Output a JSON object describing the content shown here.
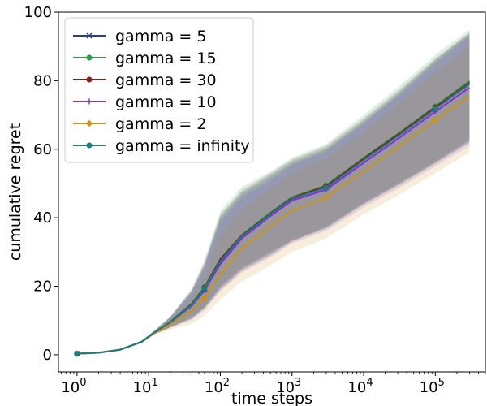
{
  "chart_data": {
    "type": "line",
    "title": "",
    "xlabel": "time steps",
    "ylabel": "cumulative regret",
    "x_scale": "log",
    "xlim": [
      0.55,
      500000
    ],
    "ylim": [
      -5,
      100
    ],
    "y_ticks": [
      0,
      20,
      40,
      60,
      80,
      100
    ],
    "x_ticks": [
      {
        "value": 1,
        "base": "10",
        "exp": "0"
      },
      {
        "value": 10,
        "base": "10",
        "exp": "1"
      },
      {
        "value": 100,
        "base": "10",
        "exp": "2"
      },
      {
        "value": 1000,
        "base": "10",
        "exp": "3"
      },
      {
        "value": 10000,
        "base": "10",
        "exp": "4"
      },
      {
        "value": 100000,
        "base": "10",
        "exp": "5"
      }
    ],
    "grid": false,
    "legend_position": "top-left",
    "shaded_bands": true,
    "series": [
      {
        "name": "gamma = 5",
        "color": "#2b3f8c",
        "marker": "x",
        "x": [
          1,
          2,
          4,
          8,
          12,
          20,
          40,
          60,
          100,
          200,
          500,
          1000,
          3000,
          10000,
          30000,
          100000,
          300000
        ],
        "y": [
          0.3,
          0.6,
          1.5,
          3.8,
          6.5,
          9.5,
          14.5,
          19.0,
          27.0,
          34.5,
          41.0,
          45.5,
          49.0,
          57.0,
          64.0,
          72.0,
          79.0
        ],
        "lower": [
          0.3,
          0.6,
          1.4,
          3.5,
          6.0,
          8.0,
          10.5,
          13.5,
          19.0,
          24.5,
          29.0,
          33.0,
          37.0,
          44.0,
          49.5,
          56.0,
          62.0
        ],
        "upper": [
          0.3,
          0.6,
          1.6,
          4.1,
          7.0,
          11.0,
          18.5,
          26.0,
          40.0,
          47.0,
          52.0,
          56.0,
          60.0,
          68.0,
          76.0,
          86.0,
          94.0
        ]
      },
      {
        "name": "gamma = 15",
        "color": "#2c9a4b",
        "marker": "o",
        "x": [
          1,
          2,
          4,
          8,
          12,
          20,
          40,
          60,
          100,
          200,
          500,
          1000,
          3000,
          10000,
          30000,
          100000,
          300000
        ],
        "y": [
          0.3,
          0.6,
          1.5,
          3.8,
          6.5,
          9.6,
          15.0,
          19.8,
          28.0,
          35.0,
          41.5,
          46.0,
          49.5,
          57.5,
          64.5,
          72.5,
          80.0
        ],
        "lower": [
          0.3,
          0.6,
          1.4,
          3.5,
          6.0,
          8.1,
          11.0,
          14.0,
          20.0,
          25.5,
          30.0,
          33.5,
          37.5,
          44.5,
          50.0,
          56.5,
          63.0
        ],
        "upper": [
          0.3,
          0.6,
          1.6,
          4.1,
          7.0,
          11.2,
          19.5,
          27.5,
          42.0,
          49.0,
          53.5,
          57.5,
          61.5,
          70.0,
          78.0,
          87.5,
          95.0
        ]
      },
      {
        "name": "gamma = 30",
        "color": "#8b1a1a",
        "marker": "o",
        "x": [
          1,
          2,
          4,
          8,
          12,
          20,
          40,
          60,
          100,
          200,
          500,
          1000,
          3000,
          10000,
          30000,
          100000,
          300000
        ],
        "y": [
          0.3,
          0.6,
          1.5,
          3.8,
          6.5,
          9.6,
          14.8,
          19.5,
          27.8,
          34.8,
          41.2,
          45.8,
          49.2,
          57.2,
          64.2,
          72.2,
          79.5
        ],
        "lower": [
          0.3,
          0.6,
          1.4,
          3.5,
          6.0,
          8.1,
          10.8,
          13.8,
          19.8,
          25.2,
          29.8,
          33.2,
          37.2,
          44.2,
          49.8,
          56.2,
          62.5
        ],
        "upper": [
          0.3,
          0.6,
          1.6,
          4.1,
          7.0,
          11.1,
          19.0,
          27.0,
          41.0,
          48.0,
          53.0,
          57.0,
          61.0,
          69.0,
          77.0,
          86.5,
          94.0
        ]
      },
      {
        "name": "gamma = 10",
        "color": "#8a2be2",
        "marker": "+",
        "x": [
          1,
          2,
          4,
          8,
          12,
          20,
          40,
          60,
          100,
          200,
          500,
          1000,
          3000,
          10000,
          30000,
          100000,
          300000
        ],
        "y": [
          0.3,
          0.6,
          1.5,
          3.8,
          6.5,
          9.4,
          14.3,
          18.8,
          26.5,
          34.0,
          40.5,
          45.0,
          48.2,
          56.0,
          63.0,
          71.0,
          78.0
        ],
        "lower": [
          0.3,
          0.6,
          1.4,
          3.5,
          6.0,
          7.8,
          10.2,
          13.0,
          18.5,
          24.0,
          28.5,
          32.5,
          36.2,
          43.0,
          48.5,
          55.0,
          61.0
        ],
        "upper": [
          0.3,
          0.6,
          1.6,
          4.1,
          7.0,
          10.9,
          18.3,
          25.5,
          39.0,
          46.0,
          51.0,
          55.5,
          59.5,
          67.5,
          75.5,
          85.0,
          93.0
        ]
      },
      {
        "name": "gamma = 2",
        "color": "#c8941c",
        "marker": "D",
        "x": [
          1,
          2,
          4,
          8,
          12,
          20,
          40,
          60,
          100,
          200,
          500,
          1000,
          3000,
          10000,
          30000,
          100000,
          300000
        ],
        "y": [
          0.3,
          0.6,
          1.5,
          3.7,
          6.3,
          8.8,
          12.8,
          16.5,
          23.5,
          31.0,
          37.5,
          42.0,
          46.0,
          53.5,
          60.5,
          68.5,
          75.5
        ],
        "lower": [
          0.3,
          0.6,
          1.4,
          3.4,
          5.8,
          7.3,
          9.0,
          11.5,
          16.0,
          21.5,
          26.0,
          30.0,
          34.0,
          41.0,
          46.5,
          53.0,
          59.0
        ],
        "upper": [
          0.3,
          0.6,
          1.6,
          4.0,
          6.8,
          10.3,
          16.6,
          23.0,
          35.0,
          42.5,
          48.5,
          53.0,
          57.5,
          65.0,
          73.0,
          82.5,
          90.0
        ]
      },
      {
        "name": "gamma = infinity",
        "color": "#1a7f7a",
        "marker": "o",
        "x": [
          1,
          2,
          4,
          8,
          12,
          20,
          40,
          60,
          100,
          200,
          500,
          1000,
          3000,
          10000,
          30000,
          100000,
          300000
        ],
        "y": [
          0.3,
          0.6,
          1.5,
          3.8,
          6.5,
          9.5,
          14.6,
          19.3,
          27.3,
          34.6,
          41.0,
          45.6,
          48.8,
          56.8,
          63.8,
          71.8,
          79.2
        ],
        "lower": [
          0.3,
          0.6,
          1.4,
          3.5,
          6.0,
          8.0,
          10.6,
          13.6,
          19.3,
          24.8,
          29.3,
          33.3,
          36.8,
          43.8,
          49.3,
          55.8,
          62.0
        ],
        "upper": [
          0.3,
          0.6,
          1.6,
          4.1,
          7.0,
          11.0,
          18.6,
          26.5,
          40.5,
          47.5,
          52.5,
          56.5,
          60.5,
          68.5,
          76.5,
          86.0,
          93.5
        ]
      }
    ]
  }
}
